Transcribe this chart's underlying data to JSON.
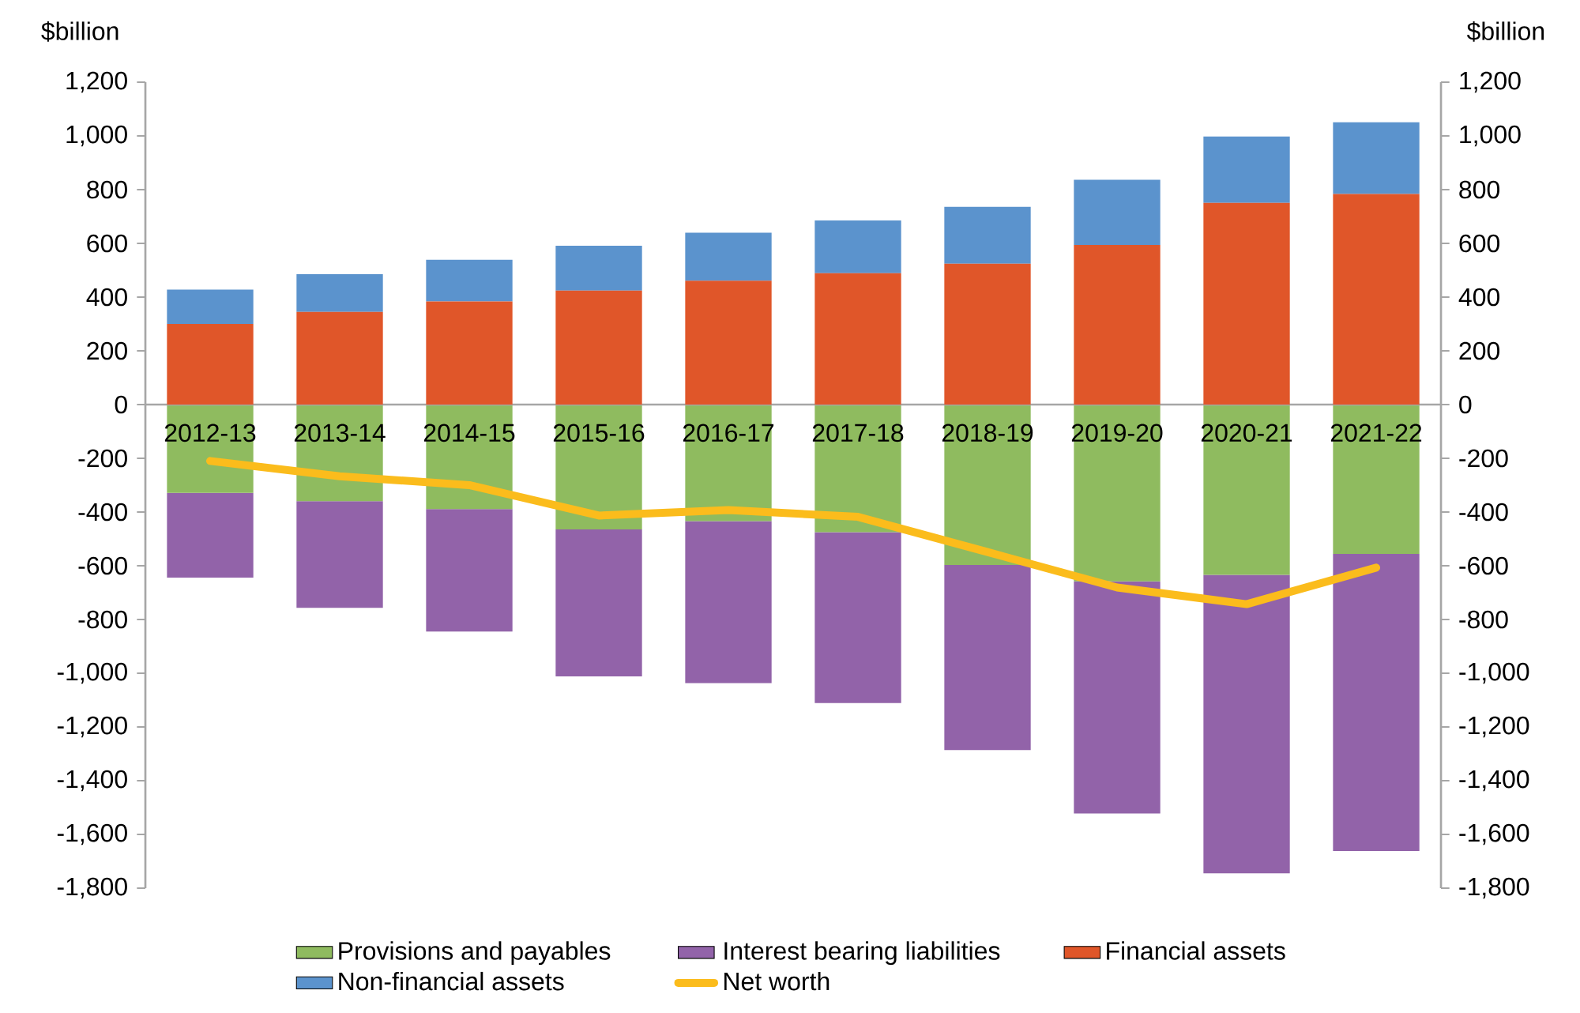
{
  "chart_data": {
    "type": "bar",
    "stacked": true,
    "ylabel": "$billion",
    "y2label": "$billion",
    "categories": [
      "2012-13",
      "2013-14",
      "2014-15",
      "2015-16",
      "2016-17",
      "2017-18",
      "2018-19",
      "2019-20",
      "2020-21",
      "2021-22"
    ],
    "series": [
      {
        "name": "Provisions and payables",
        "color": "#8fbb5f",
        "values": [
          -329,
          -360,
          -389,
          -465,
          -434,
          -475,
          -597,
          -658,
          -634,
          -556
        ]
      },
      {
        "name": "Interest bearing liabilities",
        "color": "#9263a9",
        "values": [
          -315,
          -397,
          -456,
          -547,
          -603,
          -636,
          -689,
          -864,
          -1111,
          -1106
        ]
      },
      {
        "name": "Financial assets",
        "color": "#e05629",
        "values": [
          300,
          345,
          384,
          424,
          461,
          489,
          524,
          594,
          751,
          784
        ]
      },
      {
        "name": "Non-financial assets",
        "color": "#5b93cd",
        "values": [
          128,
          140,
          155,
          167,
          179,
          196,
          212,
          243,
          247,
          267
        ]
      },
      {
        "name": "Net worth",
        "type": "line",
        "color": "#fbbc1c",
        "values": [
          -210,
          -267,
          -300,
          -413,
          -393,
          -418,
          -549,
          -681,
          -743,
          -607
        ]
      }
    ],
    "ylim": [
      -1800,
      1200
    ],
    "yticks": [
      {
        "value": -1800,
        "label": "-1,800"
      },
      {
        "value": -1600,
        "label": "-1,600"
      },
      {
        "value": -1400,
        "label": "-1,400"
      },
      {
        "value": -1200,
        "label": "-1,200"
      },
      {
        "value": -1000,
        "label": "-1,000"
      },
      -800,
      -600,
      -400,
      -200,
      0,
      200,
      400,
      600,
      800,
      {
        "value": 1000,
        "label": "1,000"
      },
      {
        "value": 1200,
        "label": "1,200"
      }
    ],
    "y2lim": [
      -1800,
      1200
    ],
    "y2ticks": [
      {
        "value": -1800,
        "label": "-1,800"
      },
      {
        "value": -1600,
        "label": "-1,600"
      },
      {
        "value": -1400,
        "label": "-1,400"
      },
      {
        "value": -1200,
        "label": "-1,200"
      },
      {
        "value": -1000,
        "label": "-1,000"
      },
      -800,
      -600,
      -400,
      -200,
      0,
      200,
      400,
      600,
      800,
      {
        "value": 1000,
        "label": "1,000"
      },
      {
        "value": 1200,
        "label": "1,200"
      }
    ],
    "grid": false,
    "legend": "bottom"
  }
}
